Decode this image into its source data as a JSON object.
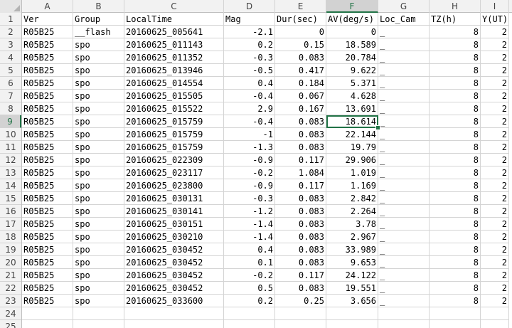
{
  "columns": [
    "A",
    "B",
    "C",
    "D",
    "E",
    "F",
    "G",
    "H",
    "I"
  ],
  "rows": [
    [
      "Ver",
      "Group",
      "LocalTime",
      "Mag",
      "Dur(sec)",
      "AV(deg/s)",
      "Loc_Cam",
      "TZ(h)",
      "Y(UT)"
    ],
    [
      "R05B25",
      "__flash",
      "20160625_005641",
      "-2.1",
      "0",
      "0",
      "_",
      "8",
      "2"
    ],
    [
      "R05B25",
      "spo",
      "20160625_011143",
      "0.2",
      "0.15",
      "18.589",
      "_",
      "8",
      "2"
    ],
    [
      "R05B25",
      "spo",
      "20160625_011352",
      "-0.3",
      "0.083",
      "20.784",
      "_",
      "8",
      "2"
    ],
    [
      "R05B25",
      "spo",
      "20160625_013946",
      "-0.5",
      "0.417",
      "9.622",
      "_",
      "8",
      "2"
    ],
    [
      "R05B25",
      "spo",
      "20160625_014554",
      "0.4",
      "0.184",
      "5.371",
      "_",
      "8",
      "2"
    ],
    [
      "R05B25",
      "spo",
      "20160625_015505",
      "-0.4",
      "0.067",
      "4.628",
      "_",
      "8",
      "2"
    ],
    [
      "R05B25",
      "spo",
      "20160625_015522",
      "2.9",
      "0.167",
      "13.691",
      "_",
      "8",
      "2"
    ],
    [
      "R05B25",
      "spo",
      "20160625_015759",
      "-0.4",
      "0.083",
      "18.614",
      "_",
      "8",
      "2"
    ],
    [
      "R05B25",
      "spo",
      "20160625_015759",
      "-1",
      "0.083",
      "22.144",
      "_",
      "8",
      "2"
    ],
    [
      "R05B25",
      "spo",
      "20160625_015759",
      "-1.3",
      "0.083",
      "19.79",
      "_",
      "8",
      "2"
    ],
    [
      "R05B25",
      "spo",
      "20160625_022309",
      "-0.9",
      "0.117",
      "29.906",
      "_",
      "8",
      "2"
    ],
    [
      "R05B25",
      "spo",
      "20160625_023117",
      "-0.2",
      "1.084",
      "1.019",
      "_",
      "8",
      "2"
    ],
    [
      "R05B25",
      "spo",
      "20160625_023800",
      "-0.9",
      "0.117",
      "1.169",
      "_",
      "8",
      "2"
    ],
    [
      "R05B25",
      "spo",
      "20160625_030131",
      "-0.3",
      "0.083",
      "2.842",
      "_",
      "8",
      "2"
    ],
    [
      "R05B25",
      "spo",
      "20160625_030141",
      "-1.2",
      "0.083",
      "2.264",
      "_",
      "8",
      "2"
    ],
    [
      "R05B25",
      "spo",
      "20160625_030151",
      "-1.4",
      "0.083",
      "3.78",
      "_",
      "8",
      "2"
    ],
    [
      "R05B25",
      "spo",
      "20160625_030210",
      "-1.4",
      "0.083",
      "2.967",
      "_",
      "8",
      "2"
    ],
    [
      "R05B25",
      "spo",
      "20160625_030452",
      "0.4",
      "0.083",
      "33.989",
      "_",
      "8",
      "2"
    ],
    [
      "R05B25",
      "spo",
      "20160625_030452",
      "0.1",
      "0.083",
      "9.653",
      "_",
      "8",
      "2"
    ],
    [
      "R05B25",
      "spo",
      "20160625_030452",
      "-0.2",
      "0.117",
      "24.122",
      "_",
      "8",
      "2"
    ],
    [
      "R05B25",
      "spo",
      "20160625_030452",
      "0.5",
      "0.083",
      "19.551",
      "_",
      "8",
      "2"
    ],
    [
      "R05B25",
      "spo",
      "20160625_033600",
      "0.2",
      "0.25",
      "3.656",
      "_",
      "8",
      "2"
    ],
    [
      "",
      "",
      "",
      "",
      "",
      "",
      "",
      "",
      ""
    ],
    [
      "",
      "",
      "",
      "",
      "",
      "",
      "",
      "",
      ""
    ]
  ],
  "row_numbers": [
    "1",
    "2",
    "3",
    "4",
    "5",
    "6",
    "7",
    "8",
    "9",
    "10",
    "11",
    "12",
    "13",
    "14",
    "15",
    "16",
    "17",
    "18",
    "19",
    "20",
    "21",
    "22",
    "23",
    "24",
    "25"
  ],
  "selection": {
    "column": "F",
    "row": "9"
  },
  "colors": {
    "accent": "#217346",
    "header_bg": "#f2f2f2",
    "gridline": "#d4d4d4"
  }
}
